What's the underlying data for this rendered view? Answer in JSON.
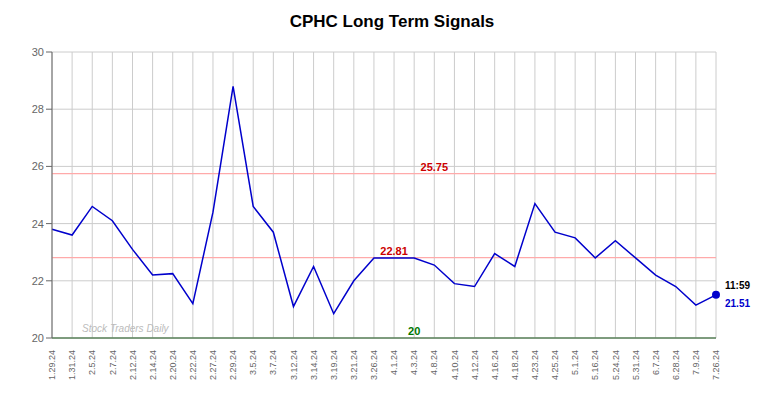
{
  "chart_data": {
    "type": "line",
    "title": "CPHC Long Term Signals",
    "categories": [
      "1.29.24",
      "1.31.24",
      "2.5.24",
      "2.7.24",
      "2.12.24",
      "2.14.24",
      "2.20.24",
      "2.22.24",
      "2.27.24",
      "2.29.24",
      "3.5.24",
      "3.7.24",
      "3.12.24",
      "3.14.24",
      "3.19.24",
      "3.21.24",
      "3.26.24",
      "4.1.24",
      "4.3.24",
      "4.8.24",
      "4.10.24",
      "4.12.24",
      "4.16.24",
      "4.18.24",
      "4.23.24",
      "4.25.24",
      "5.1.24",
      "5.16.24",
      "5.24.24",
      "5.31.24",
      "6.7.24",
      "6.28.24",
      "7.9.24",
      "7.26.24"
    ],
    "values": [
      23.8,
      23.6,
      24.6,
      24.1,
      23.1,
      22.2,
      22.25,
      21.2,
      24.4,
      28.8,
      24.6,
      23.7,
      21.1,
      22.5,
      20.85,
      22.0,
      22.8,
      22.8,
      22.8,
      22.55,
      21.9,
      21.8,
      22.95,
      22.5,
      24.7,
      23.7,
      23.5,
      22.8,
      23.4,
      22.8,
      22.2,
      21.8,
      21.15,
      21.51
    ],
    "color": "#0000cc",
    "ylim": [
      20,
      30
    ],
    "yticks": [
      20,
      22,
      24,
      26,
      28,
      30
    ],
    "grid": true,
    "hlines": [
      {
        "value": 25.75,
        "color": "#ffaaaa",
        "label": "25.75",
        "label_color": "#cc0000"
      },
      {
        "value": 22.81,
        "color": "#ffaaaa",
        "label": "22.81",
        "label_color": "#cc0000"
      },
      {
        "value": 20,
        "color": "#44bb44",
        "label": "20",
        "label_color": "#007700"
      }
    ],
    "annotations": [
      {
        "text": "Stock Traders Daily",
        "color": "#bbbbbb"
      }
    ],
    "last_point": {
      "marker": "circle",
      "color": "#0000cc",
      "labels": [
        {
          "text": "11:59",
          "color": "#000000"
        },
        {
          "text": "21.51",
          "color": "#0000cc"
        }
      ]
    }
  }
}
